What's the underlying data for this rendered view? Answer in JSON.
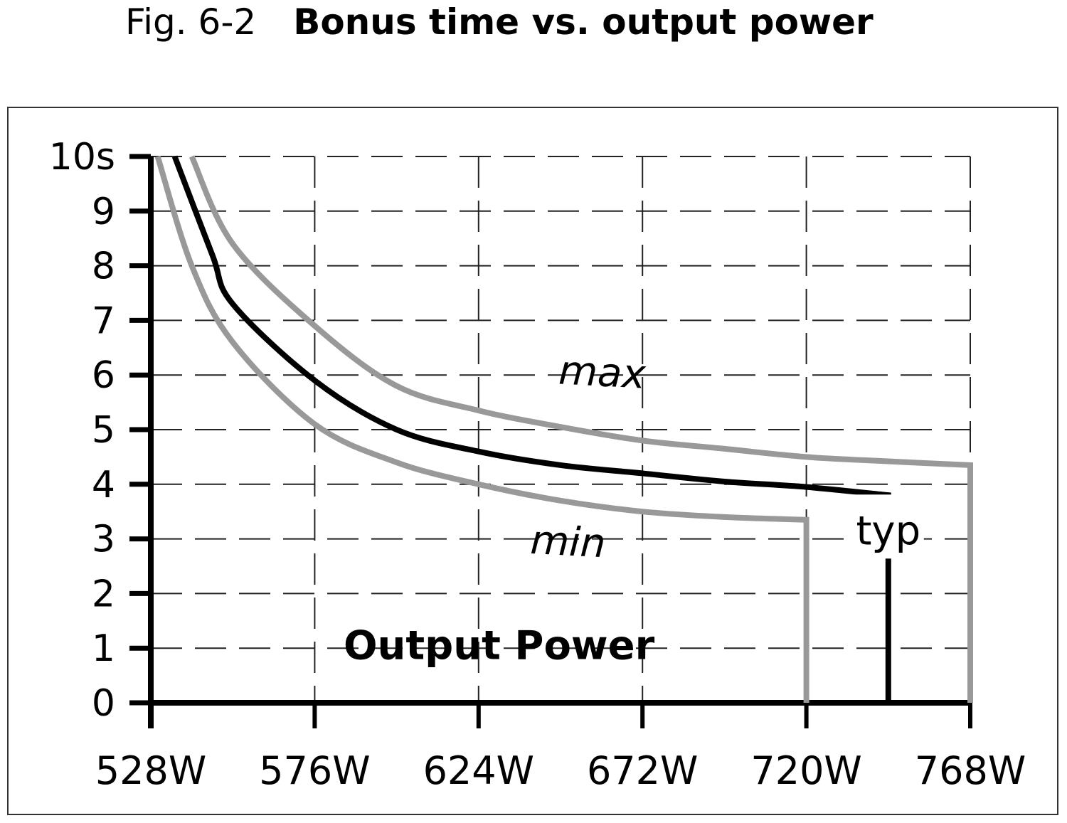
{
  "figure": {
    "number": "Fig. 6-2",
    "title": "Bonus time vs. output power"
  },
  "chart_data": {
    "type": "line",
    "title": "Bonus time vs. output power",
    "xlabel": "Output Power",
    "ylabel": "",
    "x_ticks": [
      "528W",
      "576W",
      "624W",
      "672W",
      "720W",
      "768W"
    ],
    "y_ticks": [
      "0",
      "1",
      "2",
      "3",
      "4",
      "5",
      "6",
      "7",
      "8",
      "9",
      "10s"
    ],
    "xlim": [
      528,
      768
    ],
    "ylim": [
      0,
      10
    ],
    "grid": true,
    "series": [
      {
        "name": "min",
        "color": "#999999",
        "points": [
          [
            530,
            10
          ],
          [
            540,
            8
          ],
          [
            552,
            6.6
          ],
          [
            576,
            5.1
          ],
          [
            600,
            4.4
          ],
          [
            624,
            4.0
          ],
          [
            648,
            3.7
          ],
          [
            672,
            3.5
          ],
          [
            696,
            3.4
          ],
          [
            720,
            3.35
          ],
          [
            720,
            0
          ]
        ]
      },
      {
        "name": "typ",
        "color": "#000000",
        "points": [
          [
            535,
            10
          ],
          [
            546,
            8.2
          ],
          [
            552,
            7.3
          ],
          [
            576,
            5.9
          ],
          [
            600,
            5.0
          ],
          [
            624,
            4.6
          ],
          [
            648,
            4.35
          ],
          [
            672,
            4.2
          ],
          [
            696,
            4.05
          ],
          [
            720,
            3.95
          ],
          [
            744,
            3.8
          ],
          [
            744,
            0
          ]
        ]
      },
      {
        "name": "max",
        "color": "#999999",
        "points": [
          [
            540,
            10
          ],
          [
            552,
            8.4
          ],
          [
            576,
            6.9
          ],
          [
            600,
            5.8
          ],
          [
            624,
            5.35
          ],
          [
            648,
            5.05
          ],
          [
            672,
            4.8
          ],
          [
            696,
            4.65
          ],
          [
            720,
            4.5
          ],
          [
            744,
            4.42
          ],
          [
            768,
            4.35
          ],
          [
            768,
            0
          ]
        ]
      }
    ],
    "annotations": [
      {
        "text": "max",
        "x": 660,
        "y": 5.8
      },
      {
        "text": "min",
        "x": 650,
        "y": 2.7
      },
      {
        "text": "typ",
        "x": 744,
        "y": 2.9
      },
      {
        "text": "Output Power",
        "x": 630,
        "y": 0.8
      }
    ]
  }
}
